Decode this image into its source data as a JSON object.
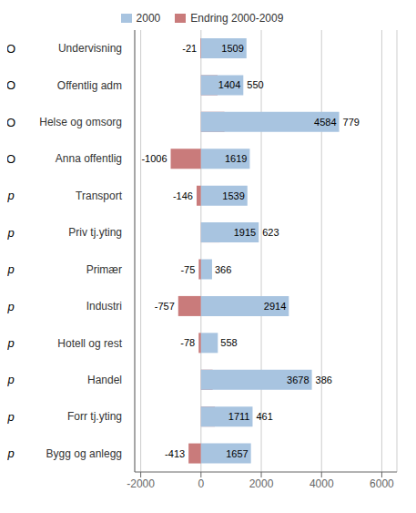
{
  "chart_data": {
    "type": "bar",
    "orientation": "horizontal",
    "categories": [
      "Undervisning",
      "Offentlig adm",
      "Helse og omsorg",
      "Anna offentlig",
      "Transport",
      "Priv tj.yting",
      "Primær",
      "Industri",
      "Hotell og rest",
      "Handel",
      "Forr tj.yting",
      "Bygg og anlegg"
    ],
    "annotations": [
      "O",
      "O",
      "O",
      "O",
      "p",
      "p",
      "p",
      "p",
      "p",
      "p",
      "p",
      "p"
    ],
    "series": [
      {
        "name": "2000",
        "color": "#a8c4e0",
        "values": [
          1509,
          1404,
          4584,
          1619,
          1539,
          1915,
          366,
          2914,
          558,
          3678,
          1711,
          1657
        ]
      },
      {
        "name": "Endring 2000-2009",
        "color": "#c97b7b",
        "values": [
          -21,
          550,
          779,
          -1006,
          -146,
          623,
          -75,
          -757,
          -78,
          386,
          461,
          -413
        ]
      }
    ],
    "xlim": [
      -2200,
      6500
    ],
    "xticks": [
      -2000,
      0,
      2000,
      4000,
      6000
    ],
    "grid": true,
    "legend": "top",
    "data_labels": true
  }
}
